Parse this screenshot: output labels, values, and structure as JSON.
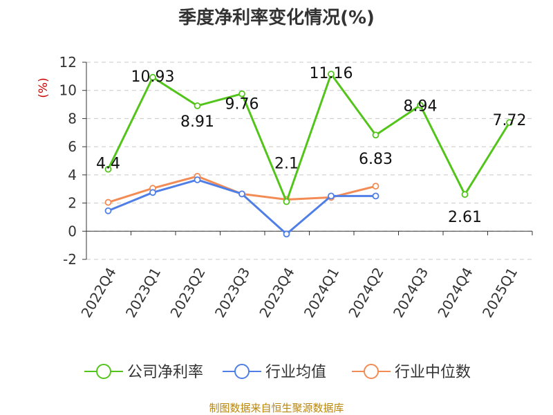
{
  "title": "季度净利率变化情况(%)",
  "unit": "(%)",
  "source": "制图数据来自恒生聚源数据库",
  "chart_data": {
    "type": "line",
    "title": "季度净利率变化情况(%)",
    "ylabel": "(%)",
    "ylim": [
      -2,
      12
    ],
    "yticks": [
      -2,
      0,
      2,
      4,
      6,
      8,
      10,
      12
    ],
    "grid": true,
    "legend_position": "bottom",
    "categories": [
      "2022Q4",
      "2023Q1",
      "2023Q2",
      "2023Q3",
      "2023Q4",
      "2024Q1",
      "2024Q2",
      "2024Q3",
      "2024Q4",
      "2025Q1"
    ],
    "series": [
      {
        "name": "公司净利率",
        "color": "#52c41a",
        "values": [
          4.4,
          10.93,
          8.91,
          9.76,
          2.1,
          11.16,
          6.83,
          8.94,
          2.61,
          7.72
        ],
        "labels": [
          "4.4",
          "10.93",
          "8.91",
          "9.76",
          "2.1",
          "11.16",
          "6.83",
          "8.94",
          "2.61",
          "7.72"
        ]
      },
      {
        "name": "行业均值",
        "color": "#4f7fe6",
        "values": [
          1.45,
          2.75,
          3.65,
          2.65,
          -0.2,
          2.5,
          2.5,
          null,
          null,
          null
        ]
      },
      {
        "name": "行业中位数",
        "color": "#f28b54",
        "values": [
          2.05,
          3.05,
          3.9,
          2.65,
          2.25,
          2.4,
          3.2,
          null,
          null,
          null
        ]
      }
    ]
  }
}
